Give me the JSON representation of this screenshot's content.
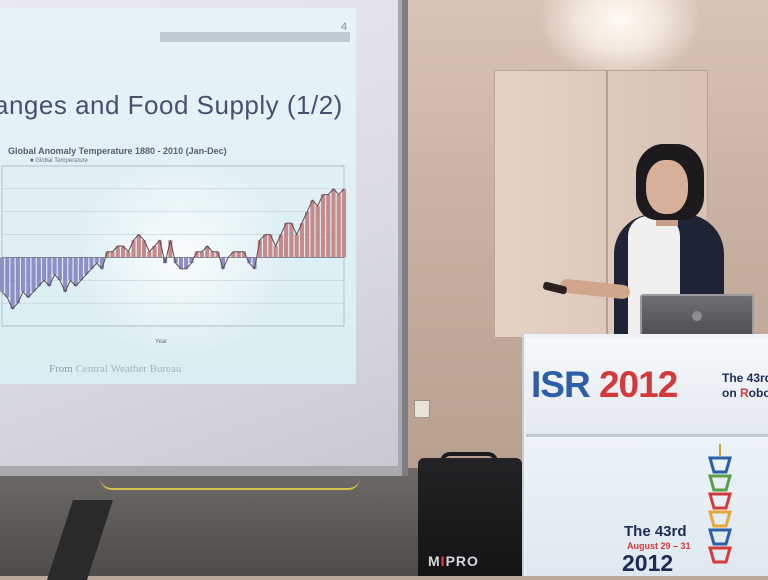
{
  "slide": {
    "page_number": "4",
    "title": "anges and Food Supply (1/2)",
    "chart_title": "Global Anomaly Temperature 1880 - 2010 (Jan-Dec)",
    "chart_legend": "■ Global Temperature",
    "chart_xlabel": "Year",
    "source_prefix": "From ",
    "source_name": "Central Weather Bureau"
  },
  "podium": {
    "brand_isr": "ISR",
    "brand_year": "2012",
    "line1": "The 43rd",
    "line2_prefix": "on ",
    "line2_r": "R",
    "line2_rest": "obo",
    "lower_title": "The 43rd",
    "lower_dates": "August 29 – 31",
    "lower_year": "2012"
  },
  "speaker": {
    "brand_prefix": "M",
    "brand_accent": "I",
    "brand_rest": "PRO"
  },
  "chart_data": {
    "type": "bar",
    "title": "Global Anomaly Temperature 1880 - 2010 (Jan-Dec)",
    "xlabel": "Year",
    "ylabel": "",
    "series_name": "Global Temperature",
    "x_range": [
      1880,
      2010
    ],
    "ylim": [
      -0.6,
      0.8
    ],
    "years": [
      1880,
      1882,
      1884,
      1886,
      1888,
      1890,
      1892,
      1894,
      1896,
      1898,
      1900,
      1902,
      1904,
      1906,
      1908,
      1910,
      1912,
      1914,
      1916,
      1918,
      1920,
      1922,
      1924,
      1926,
      1928,
      1930,
      1932,
      1934,
      1936,
      1938,
      1940,
      1942,
      1944,
      1946,
      1948,
      1950,
      1952,
      1954,
      1956,
      1958,
      1960,
      1962,
      1964,
      1966,
      1968,
      1970,
      1972,
      1974,
      1976,
      1978,
      1980,
      1982,
      1984,
      1986,
      1988,
      1990,
      1992,
      1994,
      1996,
      1998,
      2000,
      2002,
      2004,
      2006,
      2008,
      2010
    ],
    "values": [
      -0.3,
      -0.35,
      -0.45,
      -0.4,
      -0.3,
      -0.35,
      -0.3,
      -0.25,
      -0.2,
      -0.25,
      -0.15,
      -0.2,
      -0.3,
      -0.2,
      -0.25,
      -0.2,
      -0.15,
      -0.1,
      -0.05,
      -0.1,
      0.05,
      0.05,
      0.1,
      0.1,
      0.05,
      0.15,
      0.2,
      0.15,
      0.05,
      0.1,
      0.15,
      -0.05,
      0.15,
      -0.05,
      -0.1,
      -0.1,
      -0.05,
      0.05,
      0.05,
      0.1,
      0.05,
      0.05,
      -0.1,
      0,
      0.05,
      0.05,
      0.05,
      -0.05,
      -0.1,
      0.15,
      0.2,
      0.2,
      0.1,
      0.2,
      0.3,
      0.3,
      0.2,
      0.3,
      0.4,
      0.5,
      0.45,
      0.55,
      0.55,
      0.6,
      0.55,
      0.6
    ]
  }
}
